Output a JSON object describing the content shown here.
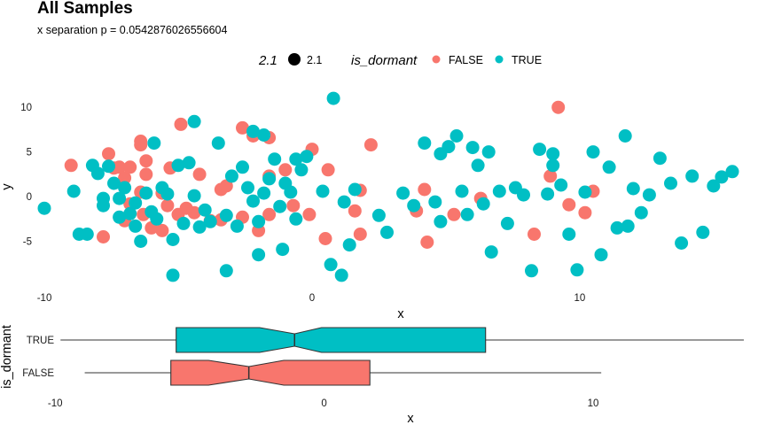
{
  "title": "All Samples",
  "subtitle": "x separation p = 0.0542876026556604",
  "legend": {
    "size_title": "2.1",
    "size_label": "2.1",
    "color_title": "is_dormant",
    "items": [
      {
        "label": "FALSE",
        "color": "#F8766D"
      },
      {
        "label": "TRUE",
        "color": "#00BFC4"
      }
    ]
  },
  "chart_data": [
    {
      "type": "scatter",
      "xlabel": "x",
      "ylabel": "y",
      "xlim": [
        -10.2,
        15.9
      ],
      "ylim": [
        -10.3,
        12.3
      ],
      "x_ticks": [
        -10,
        0,
        10
      ],
      "y_ticks": [
        -5,
        0,
        5,
        10
      ],
      "grid": false,
      "point_size": 2.1,
      "legend_position": "top",
      "series": [
        {
          "name": "FALSE",
          "color": "#F8766D",
          "points": [
            [
              -9.0,
              3.5
            ],
            [
              -7.6,
              4.8
            ],
            [
              -7.4,
              3.2
            ],
            [
              -7.2,
              3.3
            ],
            [
              -7.0,
              2.1
            ],
            [
              -6.8,
              3.3
            ],
            [
              -6.4,
              5.8
            ],
            [
              -6.4,
              6.2
            ],
            [
              -6.2,
              4.0
            ],
            [
              -6.2,
              2.5
            ],
            [
              -5.3,
              3.2
            ],
            [
              -4.9,
              8.1
            ],
            [
              -4.2,
              2.5
            ],
            [
              -3.4,
              0.8
            ],
            [
              -3.2,
              1.2
            ],
            [
              -2.6,
              7.7
            ],
            [
              -2.2,
              6.8
            ],
            [
              -1.6,
              6.6
            ],
            [
              -1.6,
              2.3
            ],
            [
              -1.0,
              3.0
            ],
            [
              0.0,
              5.3
            ],
            [
              0.6,
              3.0
            ],
            [
              2.2,
              5.8
            ],
            [
              1.6,
              -1.6
            ],
            [
              1.8,
              0.7
            ],
            [
              0.5,
              -4.7
            ],
            [
              -0.1,
              -2.0
            ],
            [
              -0.7,
              -1.0
            ],
            [
              -1.6,
              -2.0
            ],
            [
              -2.0,
              -3.8
            ],
            [
              -2.6,
              -2.3
            ],
            [
              -3.4,
              -2.6
            ],
            [
              -3.8,
              -2.7
            ],
            [
              -4.4,
              -1.8
            ],
            [
              -4.7,
              -1.3
            ],
            [
              -5.0,
              -2.0
            ],
            [
              -5.4,
              -1.0
            ],
            [
              -5.6,
              -3.8
            ],
            [
              -6.0,
              -3.5
            ],
            [
              -6.3,
              -2.0
            ],
            [
              -6.8,
              -0.8
            ],
            [
              -7.0,
              -2.7
            ],
            [
              -7.8,
              -4.5
            ],
            [
              -6.4,
              0.5
            ],
            [
              -5.6,
              0.4
            ],
            [
              1.8,
              -4.2
            ],
            [
              3.9,
              -1.6
            ],
            [
              4.3,
              -5.1
            ],
            [
              4.2,
              0.8
            ],
            [
              5.3,
              -2.0
            ],
            [
              6.3,
              -0.2
            ],
            [
              8.3,
              -4.2
            ],
            [
              8.9,
              2.3
            ],
            [
              9.2,
              10.0
            ],
            [
              9.6,
              -0.9
            ],
            [
              10.2,
              -1.8
            ],
            [
              10.5,
              0.6
            ]
          ]
        },
        {
          "name": "TRUE",
          "color": "#00BFC4",
          "points": [
            [
              -10.0,
              -1.3
            ],
            [
              -8.9,
              0.6
            ],
            [
              -8.7,
              -4.2
            ],
            [
              -8.4,
              -4.2
            ],
            [
              -8.2,
              3.5
            ],
            [
              -8.0,
              2.6
            ],
            [
              -7.8,
              -0.2
            ],
            [
              -7.6,
              3.4
            ],
            [
              -7.4,
              1.5
            ],
            [
              -7.2,
              -0.2
            ],
            [
              -7.0,
              1.0
            ],
            [
              -6.8,
              -1.9
            ],
            [
              -6.6,
              -0.7
            ],
            [
              -6.4,
              -5.0
            ],
            [
              -6.2,
              0.4
            ],
            [
              -6.0,
              -1.7
            ],
            [
              -5.8,
              -2.5
            ],
            [
              -5.6,
              1.0
            ],
            [
              -5.4,
              0.3
            ],
            [
              -5.2,
              -4.8
            ],
            [
              -5.0,
              3.5
            ],
            [
              -4.8,
              -3.0
            ],
            [
              -4.6,
              3.8
            ],
            [
              -4.4,
              0.1
            ],
            [
              -4.2,
              -3.4
            ],
            [
              -4.0,
              -1.5
            ],
            [
              -3.8,
              -2.8
            ],
            [
              -3.5,
              6.0
            ],
            [
              -3.2,
              -2.1
            ],
            [
              -3.0,
              2.3
            ],
            [
              -2.8,
              -3.3
            ],
            [
              -2.6,
              3.3
            ],
            [
              -2.4,
              1.0
            ],
            [
              -2.2,
              -0.5
            ],
            [
              -2.0,
              -2.8
            ],
            [
              -1.8,
              0.4
            ],
            [
              -1.6,
              2.0
            ],
            [
              -1.4,
              4.2
            ],
            [
              -1.2,
              -1.1
            ],
            [
              -1.0,
              1.5
            ],
            [
              -0.8,
              0.5
            ],
            [
              -0.6,
              -2.5
            ],
            [
              -0.4,
              3.0
            ],
            [
              -0.2,
              4.5
            ],
            [
              0.4,
              0.6
            ],
            [
              0.8,
              11.0
            ],
            [
              1.2,
              -0.6
            ],
            [
              1.4,
              -5.4
            ],
            [
              1.6,
              0.8
            ],
            [
              2.5,
              -2.1
            ],
            [
              2.8,
              -4.0
            ],
            [
              3.4,
              0.4
            ],
            [
              3.8,
              -1.0
            ],
            [
              4.2,
              6.0
            ],
            [
              4.6,
              -0.6
            ],
            [
              4.8,
              -2.8
            ],
            [
              5.1,
              5.6
            ],
            [
              5.4,
              6.8
            ],
            [
              5.6,
              0.6
            ],
            [
              5.8,
              -2.0
            ],
            [
              6.0,
              5.5
            ],
            [
              6.2,
              3.5
            ],
            [
              6.4,
              -0.8
            ],
            [
              6.7,
              -6.2
            ],
            [
              7.0,
              0.6
            ],
            [
              7.3,
              -3.0
            ],
            [
              7.6,
              1.0
            ],
            [
              7.9,
              0.2
            ],
            [
              8.2,
              -8.3
            ],
            [
              8.5,
              5.3
            ],
            [
              8.8,
              0.3
            ],
            [
              9.0,
              3.5
            ],
            [
              9.3,
              1.3
            ],
            [
              9.6,
              -4.2
            ],
            [
              9.9,
              -8.2
            ],
            [
              10.2,
              0.5
            ],
            [
              10.5,
              5.0
            ],
            [
              10.8,
              -6.5
            ],
            [
              11.1,
              3.3
            ],
            [
              11.4,
              -3.5
            ],
            [
              11.7,
              6.8
            ],
            [
              12.0,
              0.9
            ],
            [
              12.3,
              -1.8
            ],
            [
              12.6,
              0.2
            ],
            [
              13.0,
              4.3
            ],
            [
              13.4,
              1.5
            ],
            [
              13.8,
              -5.2
            ],
            [
              14.2,
              2.3
            ],
            [
              14.6,
              -4.0
            ],
            [
              15.0,
              1.2
            ],
            [
              15.3,
              2.2
            ],
            [
              15.7,
              2.8
            ],
            [
              -5.2,
              -8.8
            ],
            [
              -3.2,
              -8.3
            ],
            [
              -2.0,
              -6.5
            ],
            [
              -1.1,
              -5.9
            ],
            [
              0.7,
              -7.6
            ],
            [
              1.1,
              -8.8
            ],
            [
              -7.8,
              -1.0
            ],
            [
              -7.2,
              -2.3
            ],
            [
              -6.6,
              -3.3
            ],
            [
              -5.9,
              6.0
            ],
            [
              -4.4,
              8.4
            ],
            [
              -2.2,
              7.3
            ],
            [
              -1.8,
              6.9
            ],
            [
              -0.6,
              4.2
            ],
            [
              4.8,
              4.8
            ],
            [
              6.6,
              5.0
            ],
            [
              9.0,
              4.8
            ],
            [
              11.8,
              -3.3
            ]
          ]
        }
      ]
    },
    {
      "type": "boxplot",
      "notched": true,
      "orientation": "horizontal",
      "xlabel": "x",
      "ylabel": "is_dormant",
      "xlim": [
        -10.6,
        15.7
      ],
      "x_ticks": [
        -10,
        0,
        10
      ],
      "categories": [
        "TRUE",
        "FALSE"
      ],
      "series": [
        {
          "name": "TRUE",
          "color": "#00BFC4",
          "whisker_low": -9.8,
          "q1": -5.5,
          "notch_low": -2.4,
          "median": -1.1,
          "notch_high": -0.1,
          "q3": 6.0,
          "whisker_high": 15.6
        },
        {
          "name": "FALSE",
          "color": "#F8766D",
          "whisker_low": -8.9,
          "q1": -5.7,
          "notch_low": -4.3,
          "median": -2.8,
          "notch_high": -1.5,
          "q3": 1.7,
          "whisker_high": 10.3
        }
      ]
    }
  ]
}
